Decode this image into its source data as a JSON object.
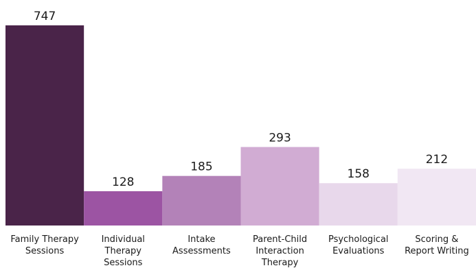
{
  "chart_data": {
    "type": "bar",
    "categories": [
      [
        "Family Therapy",
        "Sessions"
      ],
      [
        "Individual",
        "Therapy",
        "Sessions"
      ],
      [
        "Intake",
        "Assessments"
      ],
      [
        "Parent-Child",
        "Interaction",
        "Therapy"
      ],
      [
        "Psychological",
        "Evaluations"
      ],
      [
        "Scoring &",
        "Report Writing"
      ]
    ],
    "values": [
      747,
      128,
      185,
      293,
      158,
      212
    ],
    "colors": [
      "#4a2449",
      "#9c54a3",
      "#b382b8",
      "#d1acd3",
      "#e8d8eb",
      "#f1e7f3"
    ],
    "ylim": [
      0,
      800
    ],
    "grid": false,
    "legend": "none"
  }
}
